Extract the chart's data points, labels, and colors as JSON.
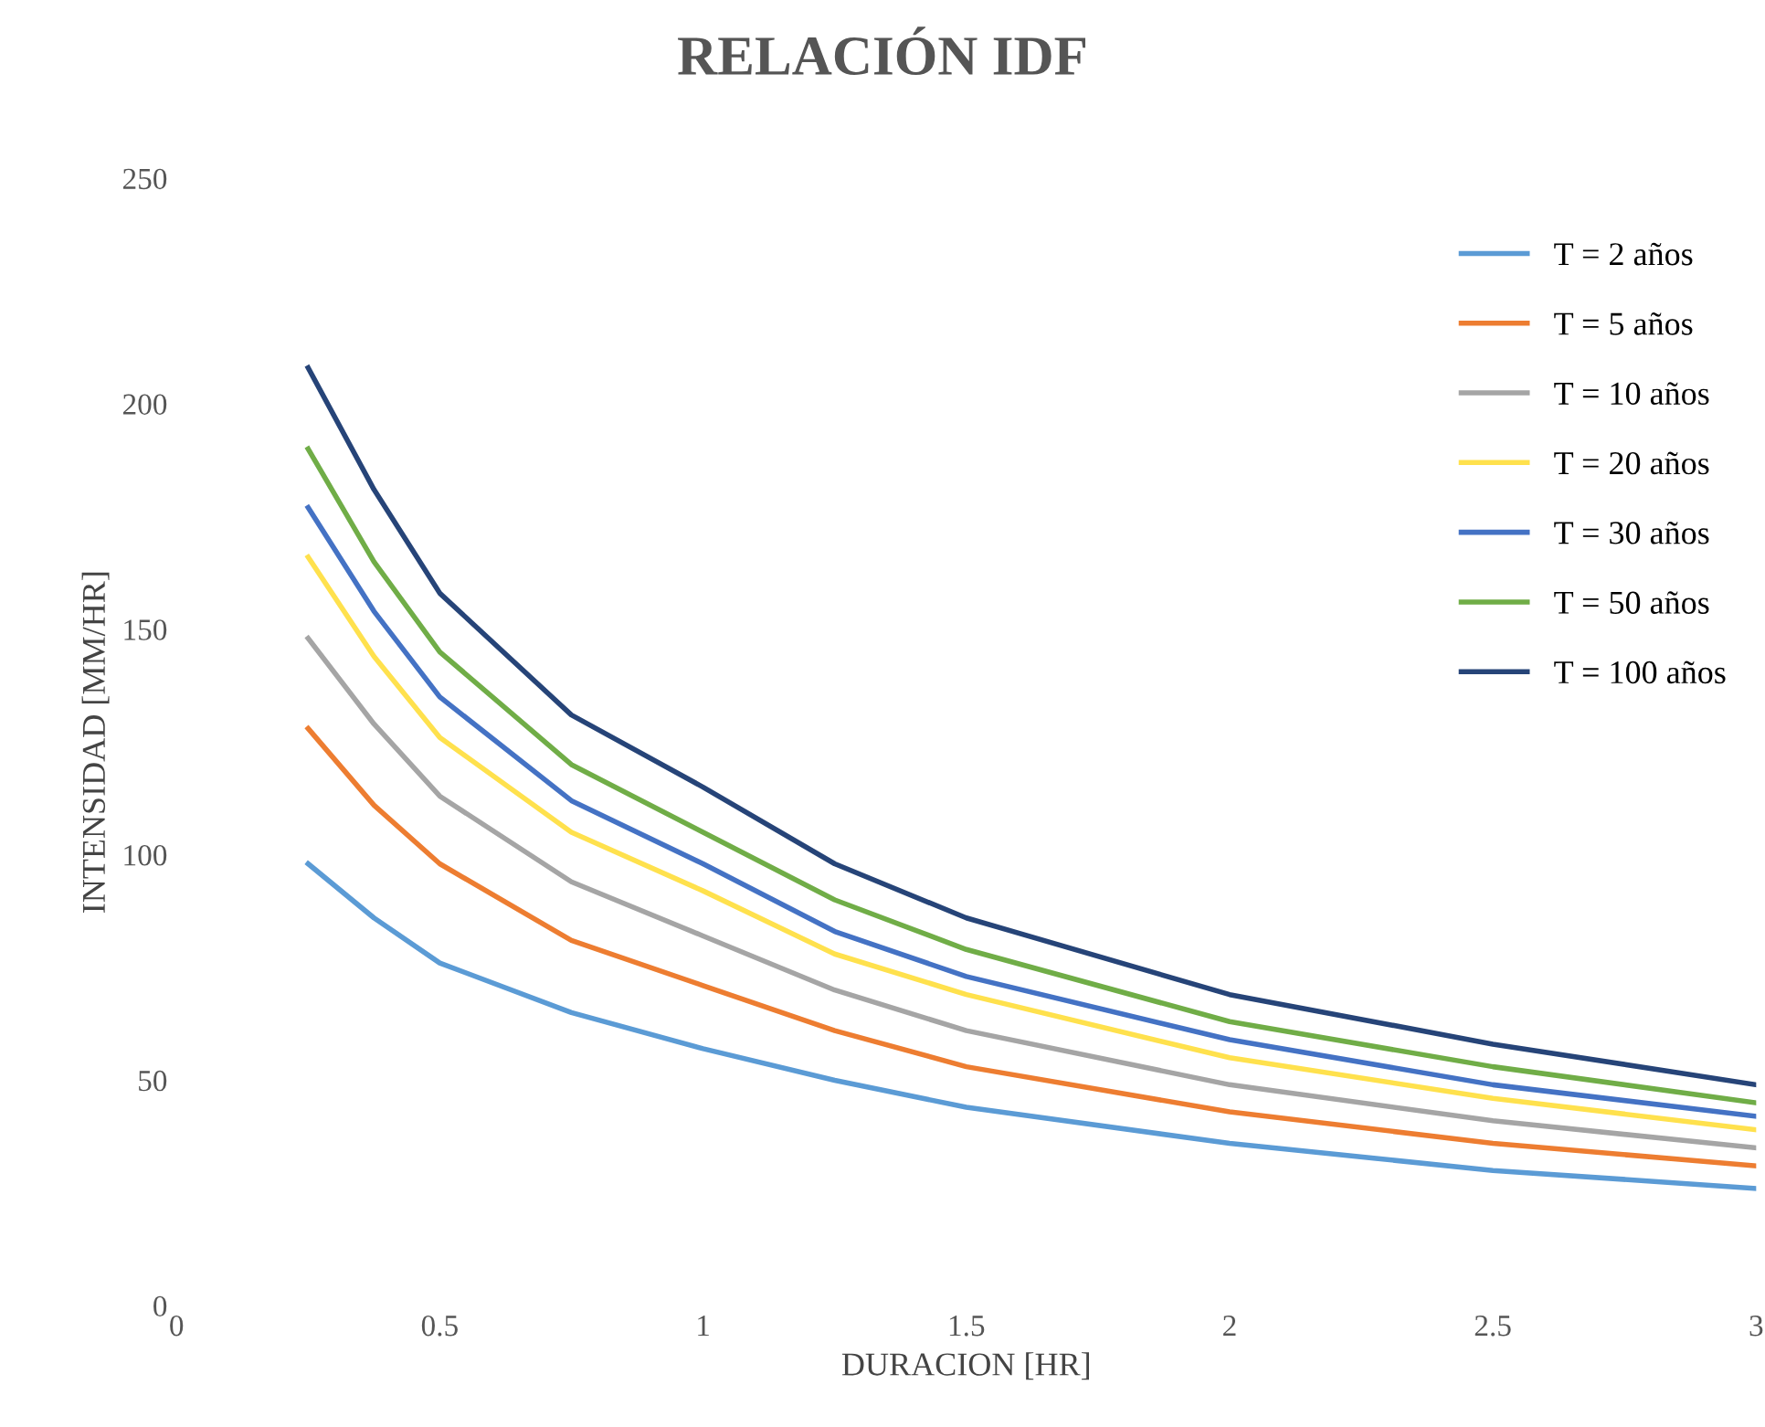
{
  "chart_data": {
    "type": "line",
    "title": "RELACIÓN IDF",
    "xlabel": "DURACION [HR]",
    "ylabel": "INTENSIDAD [MM/HR]",
    "x": [
      0.25,
      0.375,
      0.5,
      0.75,
      1,
      1.25,
      1.5,
      2,
      2.5,
      3
    ],
    "series": [
      {
        "name": "T = 2 años",
        "color": "#5b9bd5",
        "values": [
          98,
          86,
          76,
          65,
          57,
          50,
          44,
          36,
          30,
          26
        ]
      },
      {
        "name": "T = 5 años",
        "color": "#ed7d31",
        "values": [
          128,
          111,
          98,
          81,
          71,
          61,
          53,
          43,
          36,
          31
        ]
      },
      {
        "name": "T = 10 años",
        "color": "#a5a5a5",
        "values": [
          148,
          129,
          113,
          94,
          82,
          70,
          61,
          49,
          41,
          35
        ]
      },
      {
        "name": "T = 20 años",
        "color": "#ffe14d",
        "values": [
          166,
          144,
          126,
          105,
          92,
          78,
          69,
          55,
          46,
          39
        ]
      },
      {
        "name": "T = 30 años",
        "color": "#4472c4",
        "values": [
          177,
          154,
          135,
          112,
          98,
          83,
          73,
          59,
          49,
          42
        ]
      },
      {
        "name": "T = 50 años",
        "color": "#70ad47",
        "values": [
          190,
          165,
          145,
          120,
          105,
          90,
          79,
          63,
          53,
          45
        ]
      },
      {
        "name": "T = 100 años",
        "color": "#264478",
        "values": [
          208,
          181,
          158,
          131,
          115,
          98,
          86,
          69,
          58,
          49
        ]
      }
    ],
    "xlim": [
      0,
      3
    ],
    "ylim": [
      0,
      250
    ],
    "xticks": [
      0,
      0.5,
      1,
      1.5,
      2,
      2.5,
      3
    ],
    "yticks": [
      0,
      50,
      100,
      150,
      200,
      250
    ],
    "grid": false,
    "legend": "top right",
    "marker": "none",
    "line_style": "solid"
  }
}
